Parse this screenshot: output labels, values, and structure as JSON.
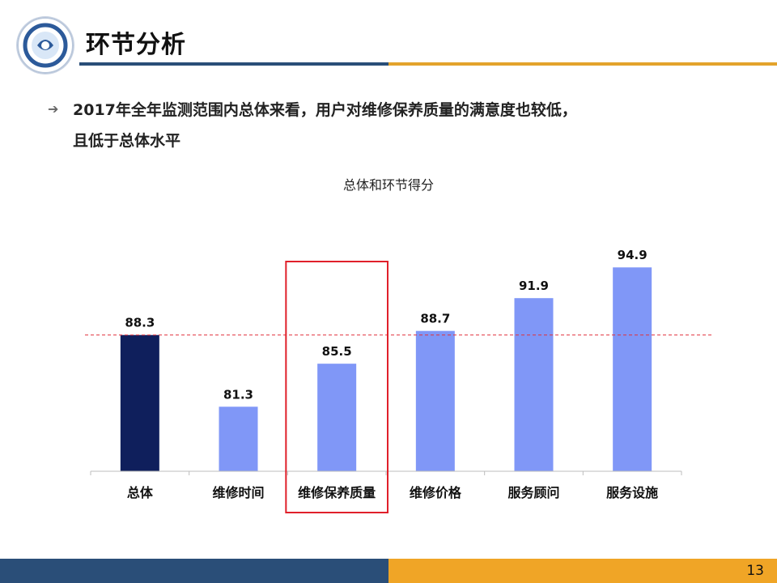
{
  "header": {
    "title": "环节分析"
  },
  "bullet": {
    "icon": "arrow-right-icon",
    "line1": "2017年全年监测范围内总体来看，用户对维修保养质量的满意度也较低，",
    "line2": "且低于总体水平"
  },
  "footer": {
    "page_number": "13"
  },
  "colors": {
    "header_blue": "#2a4e78",
    "header_orange": "#e3a32b",
    "overall_bar": "#0f1f5c",
    "segment_bar": "#8097f7",
    "reference_line": "#e0313a",
    "highlight_box": "#e0202a"
  },
  "chart_data": {
    "type": "bar",
    "title": "总体和环节得分",
    "categories": [
      "总体",
      "维修时间",
      "维修保养质量",
      "维修价格",
      "服务顾问",
      "服务设施"
    ],
    "values": [
      88.3,
      81.3,
      85.5,
      88.7,
      91.9,
      94.9
    ],
    "value_labels": [
      "88.3",
      "81.3",
      "85.5",
      "88.7",
      "91.9",
      "94.9"
    ],
    "xlabel": "",
    "ylabel": "",
    "reference_line": 88.3,
    "highlighted_category": "维修保养质量",
    "grid": false,
    "legend": "none"
  }
}
